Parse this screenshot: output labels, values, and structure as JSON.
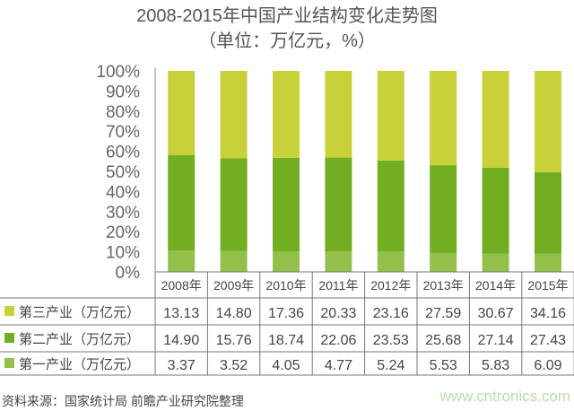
{
  "chart_data": {
    "type": "bar",
    "stacked": "percent",
    "title": "2008-2015年中国产业结构变化走势图",
    "subtitle": "（单位：万亿元，%）",
    "categories": [
      "2008年",
      "2009年",
      "2010年",
      "2011年",
      "2012年",
      "2013年",
      "2014年",
      "2015年"
    ],
    "y_ticks": [
      "0%",
      "10%",
      "20%",
      "30%",
      "40%",
      "50%",
      "60%",
      "70%",
      "80%",
      "90%",
      "100%"
    ],
    "ylim": [
      0,
      100
    ],
    "grid": false,
    "series": [
      {
        "name": "第三产业（万亿元）",
        "color": "#c9d13a",
        "values": [
          "13.13",
          "14.80",
          "17.36",
          "20.33",
          "23.16",
          "27.59",
          "30.67",
          "34.16"
        ]
      },
      {
        "name": "第二产业（万亿元）",
        "color": "#72ad22",
        "values": [
          "14.90",
          "15.76",
          "18.74",
          "22.06",
          "23.53",
          "25.68",
          "27.14",
          "27.43"
        ]
      },
      {
        "name": "第一产业（万亿元）",
        "color": "#93c04b",
        "values": [
          "3.37",
          "3.52",
          "4.05",
          "4.77",
          "5.24",
          "5.53",
          "5.83",
          "6.09"
        ]
      }
    ],
    "legend_placement": "table-below"
  },
  "source": "资料来源：国家统计局 前瞻产业研究院整理",
  "watermark": "www.cntronics.com"
}
